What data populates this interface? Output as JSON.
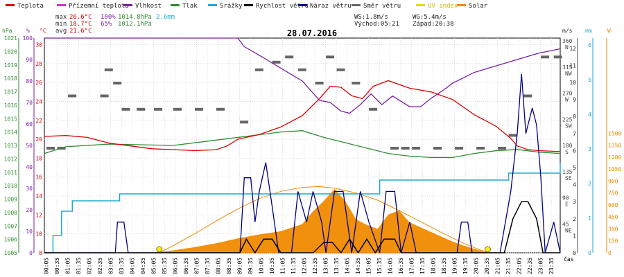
{
  "chart_data": {
    "type": "line",
    "title": "28.07.2016",
    "legend": [
      {
        "label": "Teplota",
        "color": "#dd0000"
      },
      {
        "label": "Přízemní teplota",
        "color": "#cc33cc"
      },
      {
        "label": "Vlhkost",
        "color": "#7a1fa2"
      },
      {
        "label": "Tlak",
        "color": "#2e8b2e"
      },
      {
        "label": "Srážky",
        "color": "#1eaad2"
      },
      {
        "label": "Rychlost větru",
        "color": "#000000"
      },
      {
        "label": "Náraz větru",
        "color": "#000080"
      },
      {
        "label": "Směr větru",
        "color": "#666666"
      },
      {
        "label": "UV index",
        "color": "#e8d800"
      },
      {
        "label": "Solar",
        "color": "#f08a00"
      }
    ],
    "stats": {
      "max_label": "max",
      "max_temp": "26.6°C",
      "max_hum": "100%",
      "max_press": "1014.8hPa",
      "rain_total": "2.6mm",
      "min_label": "min",
      "min_temp": "18.7°C",
      "min_hum": "65%",
      "min_press": "1012.1hPa",
      "avg_label": "avg",
      "avg_temp": "21.6°C",
      "ws": "WS:1.8m/s",
      "wg": "WG:5.4m/s",
      "sunrise": "Východ:05:21",
      "sunset": "Západ:20:38"
    },
    "axes": {
      "hpa_title": "hPa",
      "pct_title": "%",
      "c_title": "°C",
      "ms_title": "m/s",
      "mm_title": "mm",
      "w_title": "W",
      "x_title": "čas",
      "hpa_ticks": [
        "1021",
        "1020",
        "1019",
        "1018",
        "1017",
        "1016",
        "1015",
        "1014",
        "1013",
        "1012",
        "1011",
        "1010",
        "1009",
        "1008",
        "1007",
        "1006",
        "1005"
      ],
      "pct_ticks": [
        "100",
        "90",
        "80",
        "70",
        "60",
        "50",
        "40",
        "30",
        "20",
        "10",
        "0"
      ],
      "c_ticks": [
        "30",
        "28",
        "26",
        "24",
        "22",
        "20",
        "18",
        "16",
        "14",
        "12",
        "10",
        "8"
      ],
      "dir_ticks": [
        {
          "deg": "360",
          "dir": "N"
        },
        {
          "deg": "315",
          "dir": "NW"
        },
        {
          "deg": "270",
          "dir": "W"
        },
        {
          "deg": "225",
          "dir": "SW"
        },
        {
          "deg": "180",
          "dir": "S"
        },
        {
          "deg": "135",
          "dir": "SE"
        },
        {
          "deg": "90",
          "dir": "E"
        },
        {
          "deg": "45",
          "dir": "NE"
        }
      ],
      "ms_ticks": [
        "12",
        "11",
        "10",
        "9",
        "8",
        "7",
        "6",
        "5",
        "4",
        "3",
        "2",
        "1",
        "0"
      ],
      "mm_ticks": [
        "6",
        "5",
        "4",
        "3",
        "2",
        "1",
        "0"
      ],
      "w_ticks": [
        "1500",
        "1350",
        "1200",
        "1050",
        "900",
        "750",
        "600",
        "450",
        "300",
        "150",
        "0"
      ],
      "x_ticks": [
        "00:05",
        "00:35",
        "01:05",
        "01:35",
        "02:05",
        "02:35",
        "03:05",
        "03:35",
        "04:05",
        "04:35",
        "05:05",
        "05:35",
        "06:05",
        "06:35",
        "07:05",
        "07:35",
        "08:05",
        "08:35",
        "09:05",
        "09:35",
        "10:05",
        "10:35",
        "11:05",
        "11:35",
        "12:05",
        "12:35",
        "13:05",
        "13:35",
        "14:05",
        "14:35",
        "15:05",
        "15:35",
        "16:05",
        "16:35",
        "17:05",
        "17:35",
        "18:05",
        "18:35",
        "19:05",
        "19:35",
        "20:05",
        "20:35",
        "21:05",
        "21:35",
        "22:05",
        "22:35",
        "23:05",
        "23:35"
      ]
    },
    "series": {
      "temperature_c": [
        [
          0,
          20.3
        ],
        [
          1,
          20.4
        ],
        [
          2,
          20.2
        ],
        [
          3,
          19.6
        ],
        [
          4,
          19.3
        ],
        [
          5,
          19.0
        ],
        [
          6,
          18.9
        ],
        [
          7,
          18.8
        ],
        [
          8,
          18.9
        ],
        [
          8.5,
          19.3
        ],
        [
          9,
          20.0
        ],
        [
          10,
          20.5
        ],
        [
          11,
          21.3
        ],
        [
          12,
          22.5
        ],
        [
          12.8,
          24.3
        ],
        [
          13.3,
          25.6
        ],
        [
          13.8,
          25.5
        ],
        [
          14.3,
          24.6
        ],
        [
          14.8,
          24.3
        ],
        [
          15.3,
          25.6
        ],
        [
          16,
          26.2
        ],
        [
          17,
          25.4
        ],
        [
          18,
          25.0
        ],
        [
          19,
          24.2
        ],
        [
          20,
          22.6
        ],
        [
          21,
          21.4
        ],
        [
          21.7,
          20.1
        ],
        [
          22,
          19.3
        ],
        [
          22.5,
          18.9
        ],
        [
          23,
          18.8
        ],
        [
          24,
          18.7
        ]
      ],
      "humidity_pct": [
        [
          0,
          100
        ],
        [
          9,
          100
        ],
        [
          9.3,
          96
        ],
        [
          10,
          92
        ],
        [
          11,
          86
        ],
        [
          12,
          80
        ],
        [
          12.8,
          71
        ],
        [
          13.3,
          70
        ],
        [
          13.8,
          66
        ],
        [
          14.2,
          65
        ],
        [
          14.7,
          69
        ],
        [
          15.2,
          74
        ],
        [
          15.7,
          69
        ],
        [
          16.2,
          73
        ],
        [
          17,
          68
        ],
        [
          17.5,
          68
        ],
        [
          18,
          72
        ],
        [
          18.6,
          76
        ],
        [
          19,
          79
        ],
        [
          20,
          84
        ],
        [
          21,
          87
        ],
        [
          22,
          90
        ],
        [
          23,
          93
        ],
        [
          24,
          95
        ]
      ],
      "pressure_hpa": [
        [
          0,
          1012.4
        ],
        [
          1,
          1012.9
        ],
        [
          3,
          1013.1
        ],
        [
          6,
          1013.0
        ],
        [
          8,
          1013.4
        ],
        [
          10,
          1013.8
        ],
        [
          11,
          1014.0
        ],
        [
          12,
          1014.1
        ],
        [
          13,
          1013.6
        ],
        [
          14,
          1013.2
        ],
        [
          15,
          1012.8
        ],
        [
          16,
          1012.4
        ],
        [
          17,
          1012.2
        ],
        [
          18,
          1012.1
        ],
        [
          19,
          1012.1
        ],
        [
          20,
          1012.4
        ],
        [
          21,
          1012.6
        ],
        [
          22,
          1012.7
        ],
        [
          23,
          1012.5
        ],
        [
          24,
          1012.4
        ]
      ],
      "rain_cumulative_mm": [
        [
          0,
          0
        ],
        [
          0.4,
          0.5
        ],
        [
          0.8,
          1.2
        ],
        [
          1.3,
          1.5
        ],
        [
          2,
          1.5
        ],
        [
          3.3,
          1.5
        ],
        [
          3.5,
          1.7
        ],
        [
          5,
          1.7
        ],
        [
          10,
          1.7
        ],
        [
          15.5,
          1.7
        ],
        [
          15.6,
          2.1
        ],
        [
          21.3,
          2.1
        ],
        [
          21.6,
          2.3
        ],
        [
          24,
          2.6
        ]
      ],
      "wind_direction_deg": [
        [
          0.1,
          180
        ],
        [
          0.6,
          180
        ],
        [
          1.1,
          270
        ],
        [
          2.6,
          270
        ],
        [
          2.8,
          315
        ],
        [
          3.2,
          292
        ],
        [
          3.6,
          247
        ],
        [
          4.3,
          247
        ],
        [
          5.1,
          247
        ],
        [
          6,
          247
        ],
        [
          7,
          247
        ],
        [
          8,
          247
        ],
        [
          9.1,
          225
        ],
        [
          9.8,
          315
        ],
        [
          10.6,
          328
        ],
        [
          11.2,
          337
        ],
        [
          11.8,
          315
        ],
        [
          12.6,
          292
        ],
        [
          13.1,
          337
        ],
        [
          13.6,
          315
        ],
        [
          14.3,
          292
        ],
        [
          15.1,
          247
        ],
        [
          16.1,
          180
        ],
        [
          16.6,
          180
        ],
        [
          17.1,
          180
        ],
        [
          18.1,
          180
        ],
        [
          19.1,
          180
        ],
        [
          20.1,
          180
        ],
        [
          21.1,
          180
        ],
        [
          21.6,
          202
        ],
        [
          22.3,
          270
        ],
        [
          23.1,
          337
        ],
        [
          23.7,
          337
        ]
      ],
      "wind_speed_ms": [
        [
          0,
          0
        ],
        [
          9.1,
          0
        ],
        [
          9.4,
          0.8
        ],
        [
          9.8,
          0
        ],
        [
          10.2,
          0.8
        ],
        [
          10.6,
          0.8
        ],
        [
          11,
          0
        ],
        [
          12,
          0
        ],
        [
          12.5,
          0
        ],
        [
          13,
          0.6
        ],
        [
          13.4,
          0.6
        ],
        [
          13.8,
          0
        ],
        [
          14.2,
          0.8
        ],
        [
          14.6,
          0
        ],
        [
          15,
          0.8
        ],
        [
          15.4,
          0
        ],
        [
          15.8,
          0.8
        ],
        [
          16.3,
          0.8
        ],
        [
          16.6,
          0
        ],
        [
          21.4,
          0
        ],
        [
          21.8,
          2
        ],
        [
          22.2,
          3
        ],
        [
          22.5,
          3
        ],
        [
          22.9,
          2
        ],
        [
          23.2,
          0
        ],
        [
          24,
          0
        ]
      ],
      "wind_gust_ms": [
        [
          0,
          0
        ],
        [
          3.3,
          0
        ],
        [
          3.4,
          1.8
        ],
        [
          3.7,
          1.8
        ],
        [
          3.9,
          0
        ],
        [
          9.1,
          0
        ],
        [
          9.3,
          4.4
        ],
        [
          9.6,
          4.4
        ],
        [
          9.8,
          1.8
        ],
        [
          10,
          3.6
        ],
        [
          10.3,
          5.3
        ],
        [
          10.6,
          2.7
        ],
        [
          10.9,
          0
        ],
        [
          11.5,
          0
        ],
        [
          11.8,
          3.6
        ],
        [
          12.2,
          1.8
        ],
        [
          12.5,
          3.6
        ],
        [
          12.9,
          1.8
        ],
        [
          13.1,
          0
        ],
        [
          13.5,
          3.6
        ],
        [
          13.9,
          3.6
        ],
        [
          14.3,
          0
        ],
        [
          14.7,
          3.6
        ],
        [
          15.1,
          1.8
        ],
        [
          15.6,
          0
        ],
        [
          15.9,
          3.6
        ],
        [
          16.3,
          3.6
        ],
        [
          16.6,
          0
        ],
        [
          17,
          1.8
        ],
        [
          17.3,
          0
        ],
        [
          19.2,
          0
        ],
        [
          19.4,
          1.8
        ],
        [
          19.7,
          1.8
        ],
        [
          19.9,
          0
        ],
        [
          21.2,
          0
        ],
        [
          21.7,
          3.6
        ],
        [
          22,
          7
        ],
        [
          22.2,
          10.5
        ],
        [
          22.4,
          7
        ],
        [
          22.7,
          8.5
        ],
        [
          22.9,
          7.5
        ],
        [
          23.1,
          4.4
        ],
        [
          23.3,
          0
        ],
        [
          23.7,
          1.8
        ],
        [
          24,
          0
        ]
      ],
      "solar_w_m2": [
        [
          5,
          0
        ],
        [
          6,
          30
        ],
        [
          7,
          70
        ],
        [
          8,
          120
        ],
        [
          9,
          180
        ],
        [
          10,
          230
        ],
        [
          11,
          270
        ],
        [
          12,
          360
        ],
        [
          12.5,
          520
        ],
        [
          13,
          650
        ],
        [
          13.5,
          800
        ],
        [
          14,
          650
        ],
        [
          14.5,
          420
        ],
        [
          15,
          350
        ],
        [
          15.5,
          300
        ],
        [
          16,
          480
        ],
        [
          16.5,
          530
        ],
        [
          17,
          380
        ],
        [
          17.5,
          320
        ],
        [
          18,
          260
        ],
        [
          18.5,
          200
        ],
        [
          19,
          140
        ],
        [
          19.5,
          90
        ],
        [
          20,
          50
        ],
        [
          20.5,
          10
        ],
        [
          20.6,
          0
        ]
      ],
      "solar_clear_sky_w_m2": [
        [
          5.35,
          0
        ],
        [
          6,
          90
        ],
        [
          7,
          240
        ],
        [
          8,
          400
        ],
        [
          9,
          550
        ],
        [
          10,
          680
        ],
        [
          11,
          770
        ],
        [
          12,
          820
        ],
        [
          12.8,
          830
        ],
        [
          13.5,
          810
        ],
        [
          14.5,
          750
        ],
        [
          15.5,
          660
        ],
        [
          16.5,
          530
        ],
        [
          17.5,
          390
        ],
        [
          18.5,
          250
        ],
        [
          19.5,
          120
        ],
        [
          20.6,
          0
        ]
      ],
      "uv_markers_time": [
        5.35,
        20.63
      ]
    }
  }
}
